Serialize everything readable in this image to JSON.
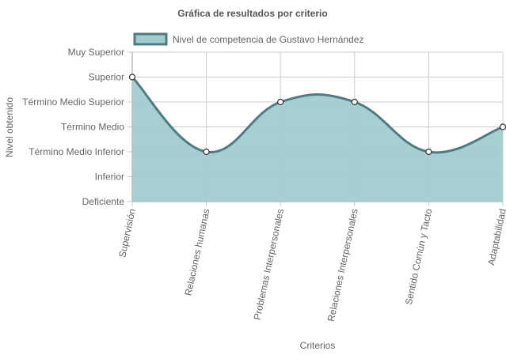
{
  "chart_data": {
    "type": "area",
    "title": "Gráfica de resultados por criterio",
    "xlabel": "Criterios",
    "ylabel": "Nivel obtenido",
    "y_levels": [
      "Deficiente",
      "Inferior",
      "Término Medio Inferior",
      "Término Medio",
      "Término Medio Superior",
      "Superior",
      "Muy Superior"
    ],
    "categories": [
      "Supervisión",
      "Relaciones humanas",
      "Problemas Interpersonales",
      "Relaciones Interpersonales",
      "Sentido Común y Tacto",
      "Adaptabilidad"
    ],
    "series": [
      {
        "name": "Nivel de competencia de Gustavo Hernández",
        "values": [
          5,
          2,
          4,
          4,
          2,
          3
        ]
      }
    ],
    "ylim": [
      0,
      6
    ],
    "grid": true,
    "legend_position": "top",
    "colors": {
      "fill": "#a0cccf",
      "line": "#4e7c7f",
      "point_fill": "#ffffff",
      "grid": "#cccccc",
      "axis": "#999999"
    }
  }
}
